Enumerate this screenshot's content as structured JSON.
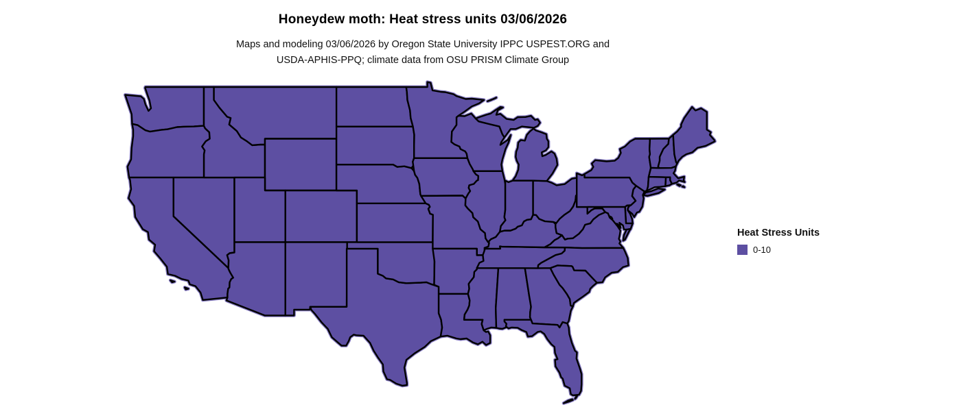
{
  "figure": {
    "title": "Honeydew moth: Heat stress units 03/06/2026",
    "subtitle_lines": [
      "Maps and modeling 03/06/2026 by Oregon State University IPPC USPEST.ORG and",
      "USDA-APHIS-PPQ; climate data from OSU PRISM Climate Group"
    ]
  },
  "legend": {
    "title": "Heat Stress Units",
    "items": [
      {
        "label": "0-10",
        "color": "#5D4FA2"
      }
    ]
  },
  "map": {
    "type": "choropleth-map",
    "fill_color": "#5D4FA2",
    "border_color": "#000000",
    "coast_halo_color": "#8A7FC5",
    "background": "#FFFFFF",
    "states": [
      {
        "id": "WA",
        "value": "0-10"
      },
      {
        "id": "OR",
        "value": "0-10"
      },
      {
        "id": "CA",
        "value": "0-10"
      },
      {
        "id": "NV",
        "value": "0-10"
      },
      {
        "id": "ID",
        "value": "0-10"
      },
      {
        "id": "MT",
        "value": "0-10"
      },
      {
        "id": "WY",
        "value": "0-10"
      },
      {
        "id": "UT",
        "value": "0-10"
      },
      {
        "id": "CO",
        "value": "0-10"
      },
      {
        "id": "AZ",
        "value": "0-10"
      },
      {
        "id": "NM",
        "value": "0-10"
      },
      {
        "id": "TX",
        "value": "0-10"
      },
      {
        "id": "OK",
        "value": "0-10"
      },
      {
        "id": "KS",
        "value": "0-10"
      },
      {
        "id": "NE",
        "value": "0-10"
      },
      {
        "id": "SD",
        "value": "0-10"
      },
      {
        "id": "ND",
        "value": "0-10"
      },
      {
        "id": "MN",
        "value": "0-10"
      },
      {
        "id": "IA",
        "value": "0-10"
      },
      {
        "id": "MO",
        "value": "0-10"
      },
      {
        "id": "AR",
        "value": "0-10"
      },
      {
        "id": "LA",
        "value": "0-10"
      },
      {
        "id": "MS",
        "value": "0-10"
      },
      {
        "id": "AL",
        "value": "0-10"
      },
      {
        "id": "GA",
        "value": "0-10"
      },
      {
        "id": "FL",
        "value": "0-10"
      },
      {
        "id": "TN",
        "value": "0-10"
      },
      {
        "id": "KY",
        "value": "0-10"
      },
      {
        "id": "IL",
        "value": "0-10"
      },
      {
        "id": "IN",
        "value": "0-10"
      },
      {
        "id": "OH",
        "value": "0-10"
      },
      {
        "id": "WV",
        "value": "0-10"
      },
      {
        "id": "PA",
        "value": "0-10"
      },
      {
        "id": "NY",
        "value": "0-10"
      },
      {
        "id": "VT",
        "value": "0-10"
      },
      {
        "id": "NH",
        "value": "0-10"
      },
      {
        "id": "ME",
        "value": "0-10"
      },
      {
        "id": "MA",
        "value": "0-10"
      },
      {
        "id": "RI",
        "value": "0-10"
      },
      {
        "id": "CT",
        "value": "0-10"
      },
      {
        "id": "NJ",
        "value": "0-10"
      },
      {
        "id": "DE",
        "value": "0-10"
      },
      {
        "id": "MD",
        "value": "0-10"
      },
      {
        "id": "VA",
        "value": "0-10"
      },
      {
        "id": "NC",
        "value": "0-10"
      },
      {
        "id": "SC",
        "value": "0-10"
      },
      {
        "id": "WI",
        "value": "0-10"
      },
      {
        "id": "MI",
        "value": "0-10"
      }
    ]
  }
}
